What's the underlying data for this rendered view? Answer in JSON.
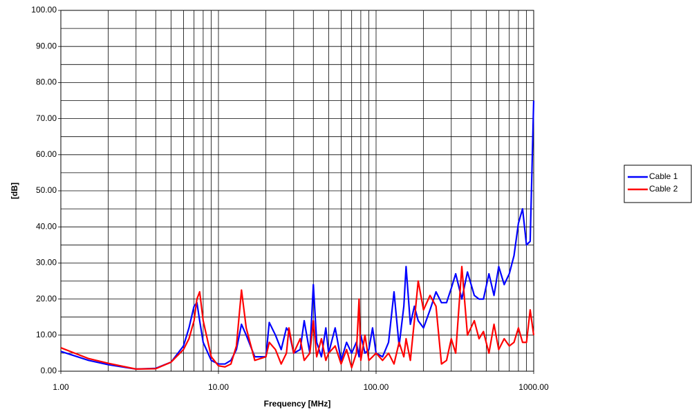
{
  "chart_data": {
    "type": "line",
    "x_label": "Frequency [MHz]",
    "y_label": "[dB]",
    "xscale": "log",
    "grid": true,
    "legend": "right",
    "xlim": [
      1,
      1000
    ],
    "xticks": [
      {
        "value": 1,
        "label": "1.00"
      },
      {
        "value": 10,
        "label": "10.00"
      },
      {
        "value": 100,
        "label": "100.00"
      },
      {
        "value": 1000,
        "label": "1000.00"
      }
    ],
    "ylim": [
      0,
      100
    ],
    "yticks": [
      {
        "value": 0,
        "label": "0.00"
      },
      {
        "value": 10,
        "label": "10.00"
      },
      {
        "value": 20,
        "label": "20.00"
      },
      {
        "value": 30,
        "label": "30.00"
      },
      {
        "value": 40,
        "label": "40.00"
      },
      {
        "value": 50,
        "label": "50.00"
      },
      {
        "value": 60,
        "label": "60.00"
      },
      {
        "value": 70,
        "label": "70.00"
      },
      {
        "value": 80,
        "label": "80.00"
      },
      {
        "value": 90,
        "label": "90.00"
      },
      {
        "value": 100,
        "label": "100.00"
      }
    ],
    "x": [
      1,
      1.5,
      2,
      3,
      4,
      5,
      6,
      6.5,
      7,
      7.3,
      7.6,
      8,
      9,
      10,
      11,
      12,
      13,
      14,
      15,
      17,
      20,
      21,
      23,
      25,
      27,
      28,
      30,
      33,
      35,
      38,
      40,
      42,
      45,
      48,
      50,
      55,
      60,
      65,
      70,
      75,
      78,
      80,
      85,
      90,
      95,
      100,
      110,
      120,
      130,
      140,
      150,
      155,
      165,
      175,
      185,
      200,
      220,
      240,
      260,
      280,
      300,
      320,
      350,
      380,
      420,
      450,
      480,
      520,
      560,
      600,
      650,
      700,
      750,
      800,
      850,
      900,
      950,
      1000
    ],
    "series": [
      {
        "name": "Cable 1",
        "color": "#0000ff",
        "values": [
          5.5,
          3,
          1.8,
          0.6,
          0.8,
          2.5,
          7,
          12,
          18,
          19,
          14,
          8,
          3,
          2,
          2,
          3,
          6,
          13,
          10,
          4,
          4,
          13.5,
          10,
          6,
          12,
          11,
          5,
          6,
          14,
          5,
          24,
          8,
          4,
          12,
          5,
          12,
          3,
          8,
          5,
          8,
          4,
          10,
          5,
          6,
          12,
          5,
          4,
          8,
          22,
          7,
          18,
          29,
          13,
          18,
          14,
          12,
          17,
          22,
          19,
          19,
          23,
          27,
          20,
          27.5,
          21,
          20,
          20,
          27,
          21,
          29,
          24,
          27,
          32,
          41,
          45,
          35,
          36,
          75
        ]
      },
      {
        "name": "Cable 2",
        "color": "#ff0000",
        "values": [
          6.5,
          3.5,
          2.2,
          0.6,
          0.7,
          2.5,
          6,
          9,
          14,
          20,
          22,
          14,
          4,
          1.5,
          1.2,
          2,
          7,
          22.5,
          12,
          3,
          4,
          8,
          6,
          2,
          5,
          12,
          5,
          9,
          3,
          5,
          14,
          4,
          9,
          3,
          5,
          7,
          2,
          6,
          1,
          5,
          20,
          3,
          10,
          3,
          4,
          5,
          3,
          5,
          2,
          8,
          4,
          9,
          3,
          14,
          25,
          17,
          21,
          18,
          2,
          3,
          9,
          5,
          29,
          10,
          14,
          9,
          11,
          5,
          13,
          6,
          9,
          7,
          8,
          12,
          8,
          8,
          17,
          10
        ]
      }
    ]
  }
}
